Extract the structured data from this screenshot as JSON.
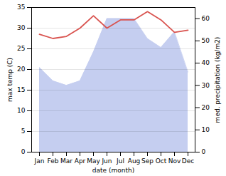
{
  "chart_data": {
    "type": "line",
    "categories": [
      "Jan",
      "Feb",
      "Mar",
      "Apr",
      "May",
      "Jun",
      "Jul",
      "Aug",
      "Sep",
      "Oct",
      "Nov",
      "Dec"
    ],
    "xlabel": "date (month)",
    "ylabel": "max temp (C)",
    "y2label": "med. precipitation (kg/m2)",
    "series": [
      {
        "type": "area",
        "color": "#c5cef0",
        "axis": "y2",
        "values": [
          38,
          32,
          30,
          32,
          45,
          60,
          60,
          60,
          51,
          47,
          54,
          36
        ]
      },
      {
        "type": "line",
        "color": "#d9534f",
        "values": [
          28.5,
          27.5,
          28.0,
          30.0,
          33.0,
          30.0,
          32.0,
          32.0,
          34.0,
          32.0,
          29.0,
          29.5
        ]
      }
    ],
    "ylim": [
      0,
      35
    ],
    "yticks": [
      0,
      5,
      10,
      15,
      20,
      25,
      30,
      35
    ],
    "y2lim": [
      0,
      65
    ],
    "y2ticks": [
      0,
      10,
      20,
      30,
      40,
      50,
      60
    ],
    "grid": true
  }
}
